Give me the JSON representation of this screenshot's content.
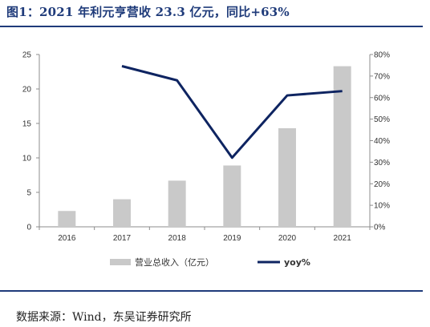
{
  "title": "图1：2021 年利元亨营收 23.3 亿元，同比+63%",
  "source": "数据来源：Wind，东吴证券研究所",
  "chart_data": {
    "type": "bar+line",
    "categories": [
      "2016",
      "2017",
      "2018",
      "2019",
      "2020",
      "2021"
    ],
    "series": [
      {
        "name": "营业总收入（亿元）",
        "type": "bar",
        "axis": "left",
        "color": "#c9c9c9",
        "values": [
          2.3,
          4.0,
          6.7,
          8.9,
          14.3,
          23.3
        ]
      },
      {
        "name": "yoy%",
        "type": "line",
        "axis": "right",
        "color": "#0e2461",
        "values": [
          null,
          74.6,
          68.0,
          32.1,
          61.0,
          63.0
        ]
      }
    ],
    "y_left": {
      "min": 0,
      "max": 25,
      "ticks": [
        "0",
        "5",
        "10",
        "15",
        "20",
        "25"
      ]
    },
    "y_right": {
      "min": 0,
      "max": 80,
      "ticks": [
        "0%",
        "10%",
        "20%",
        "30%",
        "40%",
        "50%",
        "60%",
        "70%",
        "80%"
      ]
    },
    "grid": false,
    "legend_position": "bottom"
  }
}
